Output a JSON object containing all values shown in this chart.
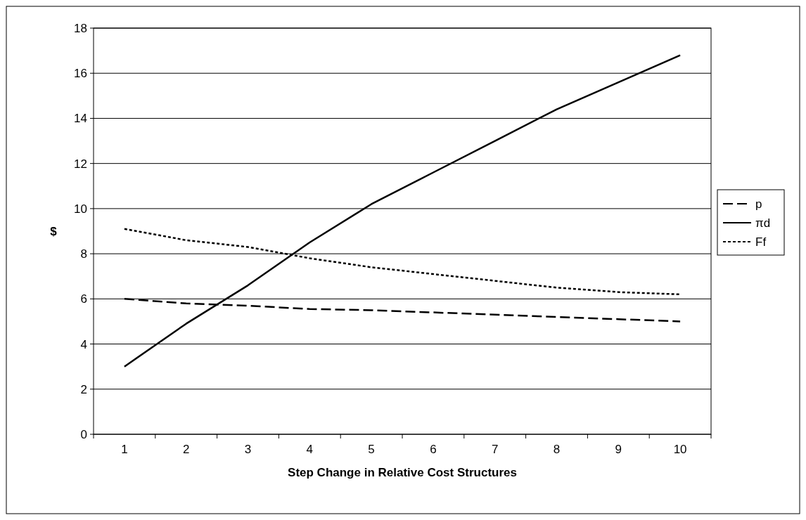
{
  "chart_data": {
    "type": "line",
    "xlabel": "Step Change in Relative Cost Structures",
    "ylabel": "$",
    "categories": [
      "1",
      "2",
      "3",
      "4",
      "5",
      "6",
      "7",
      "8",
      "9",
      "10"
    ],
    "series": [
      {
        "name": "p",
        "color": "#000000",
        "line_style": "dashed",
        "values": [
          6.0,
          5.8,
          5.7,
          5.55,
          5.5,
          5.4,
          5.3,
          5.2,
          5.1,
          5.0
        ]
      },
      {
        "name": "πd",
        "color": "#000000",
        "line_style": "solid",
        "values": [
          3.0,
          4.9,
          6.6,
          8.5,
          10.2,
          11.6,
          13.0,
          14.4,
          15.6,
          16.8
        ]
      },
      {
        "name": "Ff",
        "color": "#000000",
        "line_style": "dotted",
        "values": [
          9.1,
          8.6,
          8.3,
          7.8,
          7.4,
          7.1,
          6.8,
          6.5,
          6.3,
          6.2
        ]
      }
    ],
    "ylim": [
      0,
      18
    ],
    "yticks": [
      0,
      2,
      4,
      6,
      8,
      10,
      12,
      14,
      16,
      18
    ],
    "grid": "y",
    "legend": "right",
    "marker": "none"
  }
}
